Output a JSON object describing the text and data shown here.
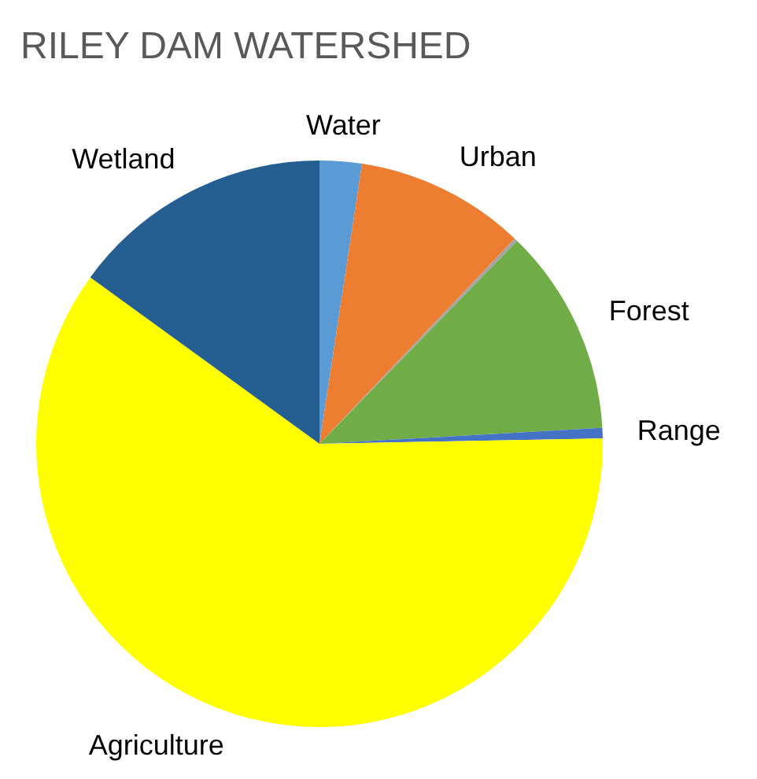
{
  "chart_data": {
    "type": "pie",
    "title": "RILEY DAM WATERSHED",
    "categories": [
      "Water",
      "Urban",
      null,
      "Forest",
      "Range",
      "Agriculture",
      "Wetland"
    ],
    "values": [
      2.4,
      9.7,
      0.2,
      11.8,
      0.6,
      60.3,
      15
    ],
    "colors": [
      "#5b9bd5",
      "#ed7d31",
      "#a5a5a5",
      "#70ad47",
      "#4472c4",
      "#ffff00",
      "#255e91"
    ],
    "legend": false
  }
}
